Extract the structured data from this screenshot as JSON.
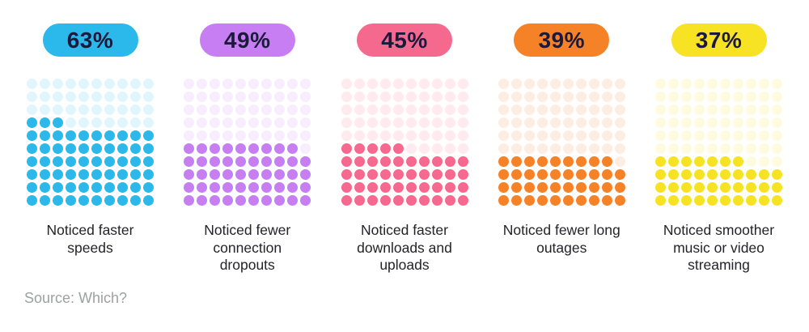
{
  "chart_data": {
    "type": "waffle",
    "title": "",
    "unit": "percent of respondents (each dot = 1%)",
    "grid": {
      "rows": 10,
      "cols": 10
    },
    "legend_position": "none",
    "series": [
      {
        "label": "Noticed faster speeds",
        "label_lines": "Noticed faster\nspeeds",
        "badge": "63%",
        "value": 63,
        "color": "#2BB8EB"
      },
      {
        "label": "Noticed fewer connection dropouts",
        "label_lines": "Noticed fewer\nconnection\ndropouts",
        "badge": "49%",
        "value": 49,
        "color": "#C77EF2"
      },
      {
        "label": "Noticed faster downloads and uploads",
        "label_lines": "Noticed faster\ndownloads and\nuploads",
        "badge": "45%",
        "value": 45,
        "color": "#F5698F"
      },
      {
        "label": "Noticed fewer long outages",
        "label_lines": "Noticed fewer long\noutages",
        "badge": "39%",
        "value": 39,
        "color": "#F58227"
      },
      {
        "label": "Noticed smoother music or video streaming",
        "label_lines": "Noticed smoother\nmusic or video\nstreaming",
        "badge": "37%",
        "value": 37,
        "color": "#F8E224"
      }
    ]
  },
  "source": "Source: Which?",
  "colors": {
    "badge_text": "#1B1A3D",
    "label_text": "#232329",
    "source_text": "#9EA0A3",
    "background": "#FFFFFF"
  }
}
